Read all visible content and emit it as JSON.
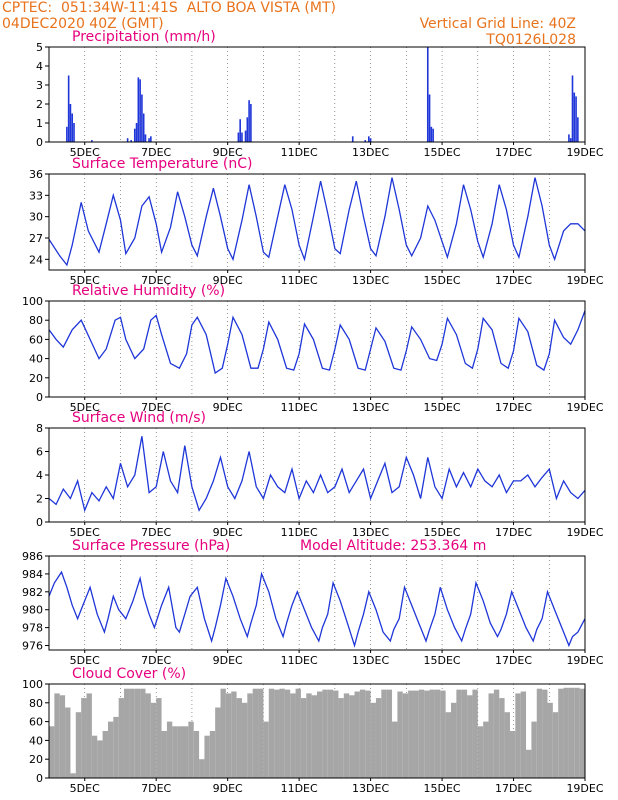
{
  "header": {
    "left_line1": "CPTEC:  051:34W-11:41S  ALTO BOA VISTA (MT)",
    "left_line2": "04DEC2020 40Z (GMT)",
    "right_line1": "Vertical Grid Line: 40Z",
    "right_line2": "TQ0126L028"
  },
  "colors": {
    "series": "#1f36d8",
    "title": "#e6007e",
    "header": "#e8731d",
    "cloud": "#a6a6a6",
    "grid": "#555555"
  },
  "chart_data": [
    {
      "type": "bar",
      "title": "Precipitation (mm/h)",
      "xlim": [
        4.0,
        19.0
      ],
      "ylim": [
        0,
        5
      ],
      "yticks": [
        0,
        1,
        2,
        3,
        4,
        5
      ],
      "xticks": [
        "5DEC",
        "7DEC",
        "9DEC",
        "11DEC",
        "13DEC",
        "15DEC",
        "17DEC",
        "19DEC"
      ],
      "bar_width_days": 0.045,
      "x": [
        4.5,
        4.55,
        4.6,
        4.65,
        4.7,
        5.2,
        6.2,
        6.3,
        6.4,
        6.45,
        6.5,
        6.55,
        6.6,
        6.65,
        6.7,
        6.8,
        6.85,
        9.3,
        9.35,
        9.4,
        9.5,
        9.55,
        9.6,
        9.65,
        12.5,
        12.85,
        12.95,
        13.0,
        14.6,
        14.65,
        14.7,
        14.75,
        18.55,
        18.6,
        18.65,
        18.7,
        18.75,
        18.8
      ],
      "values": [
        0.8,
        3.5,
        2.0,
        1.5,
        1.0,
        0.1,
        0.2,
        0.1,
        0.7,
        1.0,
        3.4,
        3.3,
        2.5,
        1.5,
        0.4,
        0.2,
        0.3,
        0.5,
        1.2,
        0.5,
        0.6,
        1.3,
        2.2,
        2.0,
        0.3,
        0.1,
        0.3,
        0.2,
        5.0,
        2.5,
        0.8,
        0.7,
        0.4,
        0.2,
        3.5,
        2.6,
        2.4,
        1.3
      ]
    },
    {
      "type": "line",
      "title": "Surface Temperature (nC)",
      "xlim": [
        4.0,
        19.0
      ],
      "ylim": [
        22.5,
        36
      ],
      "yticks": [
        24,
        27,
        30,
        33,
        36
      ],
      "xticks": [
        "5DEC",
        "7DEC",
        "9DEC",
        "11DEC",
        "13DEC",
        "15DEC",
        "17DEC",
        "19DEC"
      ],
      "x": [
        4.0,
        4.3,
        4.5,
        4.65,
        4.9,
        5.1,
        5.4,
        5.6,
        5.8,
        6.0,
        6.15,
        6.4,
        6.6,
        6.8,
        7.0,
        7.15,
        7.4,
        7.6,
        7.8,
        8.0,
        8.15,
        8.4,
        8.6,
        8.8,
        9.0,
        9.15,
        9.4,
        9.6,
        9.8,
        10.0,
        10.15,
        10.4,
        10.6,
        10.8,
        11.0,
        11.15,
        11.4,
        11.6,
        11.8,
        12.0,
        12.15,
        12.4,
        12.6,
        12.8,
        13.0,
        13.15,
        13.4,
        13.6,
        13.8,
        14.0,
        14.15,
        14.4,
        14.6,
        14.8,
        15.0,
        15.15,
        15.4,
        15.6,
        15.8,
        16.0,
        16.15,
        16.4,
        16.6,
        16.8,
        17.0,
        17.15,
        17.4,
        17.6,
        17.8,
        18.0,
        18.15,
        18.4,
        18.6,
        18.8,
        19.0
      ],
      "values": [
        26.8,
        24.5,
        23.2,
        26.0,
        32.0,
        28.0,
        25.0,
        29.0,
        33.0,
        29.5,
        24.8,
        27.0,
        31.5,
        32.8,
        29.0,
        25.0,
        28.5,
        33.5,
        30.0,
        26.0,
        24.5,
        30.0,
        34.0,
        30.0,
        25.5,
        24.0,
        29.5,
        34.5,
        30.0,
        25.0,
        24.3,
        30.0,
        34.5,
        31.0,
        26.0,
        24.0,
        30.0,
        35.0,
        30.5,
        25.5,
        24.8,
        31.0,
        35.0,
        30.0,
        25.5,
        24.5,
        30.0,
        35.5,
        31.0,
        26.0,
        24.5,
        27.0,
        31.5,
        29.5,
        26.5,
        24.3,
        29.0,
        34.5,
        31.0,
        26.5,
        24.3,
        29.0,
        34.5,
        31.0,
        26.0,
        24.3,
        30.0,
        35.5,
        31.5,
        26.0,
        24.0,
        28.0,
        29.0,
        29.0,
        28.0
      ]
    },
    {
      "type": "line",
      "title": "Relative Humidity (%)",
      "xlim": [
        4.0,
        19.0
      ],
      "ylim": [
        0,
        100
      ],
      "yticks": [
        0,
        20,
        40,
        60,
        80,
        100
      ],
      "xticks": [
        "5DEC",
        "7DEC",
        "9DEC",
        "11DEC",
        "13DEC",
        "15DEC",
        "17DEC",
        "19DEC"
      ],
      "x": [
        4.0,
        4.2,
        4.4,
        4.65,
        4.9,
        5.15,
        5.4,
        5.6,
        5.85,
        6.0,
        6.15,
        6.4,
        6.65,
        6.85,
        7.0,
        7.15,
        7.4,
        7.65,
        7.85,
        8.0,
        8.15,
        8.4,
        8.65,
        8.85,
        9.0,
        9.15,
        9.4,
        9.65,
        9.85,
        10.0,
        10.15,
        10.4,
        10.65,
        10.85,
        11.0,
        11.15,
        11.4,
        11.65,
        11.85,
        12.0,
        12.15,
        12.4,
        12.65,
        12.85,
        13.0,
        13.15,
        13.4,
        13.65,
        13.85,
        14.0,
        14.15,
        14.4,
        14.65,
        14.85,
        15.0,
        15.15,
        15.4,
        15.65,
        15.85,
        16.0,
        16.15,
        16.4,
        16.65,
        16.85,
        17.0,
        17.15,
        17.4,
        17.65,
        17.85,
        18.0,
        18.15,
        18.4,
        18.6,
        18.8,
        19.0
      ],
      "values": [
        70.0,
        60.0,
        52.0,
        70.0,
        80.0,
        60.0,
        40.0,
        50.0,
        80.0,
        83.0,
        60.0,
        40.0,
        50.0,
        80.0,
        85.0,
        65.0,
        35.0,
        30.0,
        45.0,
        75.0,
        83.0,
        65.0,
        25.0,
        30.0,
        55.0,
        83.0,
        65.0,
        30.0,
        30.0,
        50.0,
        78.0,
        60.0,
        30.0,
        28.0,
        45.0,
        76.0,
        60.0,
        30.0,
        28.0,
        50.0,
        75.0,
        60.0,
        30.0,
        28.0,
        50.0,
        72.0,
        58.0,
        30.0,
        28.0,
        48.0,
        73.0,
        60.0,
        40.0,
        38.0,
        55.0,
        82.0,
        65.0,
        35.0,
        30.0,
        50.0,
        82.0,
        70.0,
        35.0,
        30.0,
        48.0,
        82.0,
        68.0,
        33.0,
        28.0,
        45.0,
        80.0,
        62.0,
        55.0,
        70.0,
        90.0
      ]
    },
    {
      "type": "line",
      "title": "Surface Wind (m/s)",
      "xlim": [
        4.0,
        19.0
      ],
      "ylim": [
        0,
        8
      ],
      "yticks": [
        0,
        2,
        4,
        6,
        8
      ],
      "xticks": [
        "5DEC",
        "7DEC",
        "9DEC",
        "11DEC",
        "13DEC",
        "15DEC",
        "17DEC",
        "19DEC"
      ],
      "x": [
        4.0,
        4.2,
        4.4,
        4.6,
        4.8,
        5.0,
        5.2,
        5.4,
        5.6,
        5.8,
        6.0,
        6.2,
        6.4,
        6.6,
        6.8,
        7.0,
        7.2,
        7.4,
        7.6,
        7.8,
        8.0,
        8.2,
        8.4,
        8.6,
        8.8,
        9.0,
        9.2,
        9.4,
        9.6,
        9.8,
        10.0,
        10.2,
        10.4,
        10.6,
        10.8,
        11.0,
        11.2,
        11.4,
        11.6,
        11.8,
        12.0,
        12.2,
        12.4,
        12.6,
        12.8,
        13.0,
        13.2,
        13.4,
        13.6,
        13.8,
        14.0,
        14.2,
        14.4,
        14.6,
        14.8,
        15.0,
        15.2,
        15.4,
        15.6,
        15.8,
        16.0,
        16.2,
        16.4,
        16.6,
        16.8,
        17.0,
        17.2,
        17.4,
        17.6,
        17.8,
        18.0,
        18.2,
        18.4,
        18.6,
        18.8,
        19.0
      ],
      "values": [
        2.0,
        1.5,
        2.8,
        2.0,
        3.5,
        1.0,
        2.5,
        1.8,
        3.0,
        2.0,
        5.0,
        3.0,
        4.0,
        7.3,
        2.5,
        3.0,
        6.0,
        3.5,
        2.5,
        6.5,
        3.0,
        1.0,
        2.0,
        3.5,
        5.5,
        3.0,
        2.0,
        3.5,
        6.0,
        3.0,
        2.0,
        4.0,
        3.0,
        2.5,
        4.5,
        2.0,
        3.5,
        2.5,
        4.0,
        2.5,
        3.0,
        4.5,
        2.5,
        3.5,
        4.5,
        2.0,
        3.5,
        5.0,
        2.5,
        3.0,
        5.5,
        4.0,
        2.0,
        5.5,
        3.0,
        2.0,
        4.5,
        3.0,
        4.2,
        3.0,
        4.5,
        3.5,
        3.0,
        4.0,
        2.5,
        3.5,
        3.5,
        4.0,
        3.0,
        3.8,
        4.5,
        2.0,
        3.5,
        2.5,
        2.0,
        2.7
      ]
    },
    {
      "type": "line",
      "title": "Surface Pressure (hPa)",
      "annotation": "Model Altitude: 253.364 m",
      "xlim": [
        4.0,
        19.0
      ],
      "ylim": [
        975.5,
        986
      ],
      "yticks": [
        976,
        978,
        980,
        982,
        984,
        986
      ],
      "xticks": [
        "5DEC",
        "7DEC",
        "9DEC",
        "11DEC",
        "13DEC",
        "15DEC",
        "17DEC",
        "19DEC"
      ],
      "x": [
        4.0,
        4.15,
        4.35,
        4.5,
        4.65,
        4.8,
        4.95,
        5.15,
        5.35,
        5.55,
        5.65,
        5.8,
        5.95,
        6.15,
        6.35,
        6.55,
        6.65,
        6.8,
        6.95,
        7.15,
        7.35,
        7.55,
        7.65,
        7.8,
        7.95,
        8.15,
        8.35,
        8.55,
        8.65,
        8.8,
        8.95,
        9.15,
        9.35,
        9.55,
        9.65,
        9.8,
        9.95,
        10.15,
        10.35,
        10.55,
        10.65,
        10.8,
        10.95,
        11.15,
        11.35,
        11.55,
        11.65,
        11.8,
        11.95,
        12.15,
        12.35,
        12.55,
        12.65,
        12.8,
        12.95,
        13.15,
        13.35,
        13.55,
        13.65,
        13.8,
        13.95,
        14.15,
        14.35,
        14.55,
        14.65,
        14.8,
        14.95,
        15.15,
        15.35,
        15.55,
        15.65,
        15.8,
        15.95,
        16.15,
        16.35,
        16.55,
        16.65,
        16.8,
        16.95,
        17.15,
        17.35,
        17.55,
        17.65,
        17.8,
        17.95,
        18.15,
        18.35,
        18.55,
        18.65,
        18.8,
        19.0
      ],
      "values": [
        981.5,
        983.0,
        984.2,
        982.5,
        980.5,
        979.0,
        980.5,
        982.5,
        979.5,
        977.5,
        979.0,
        981.5,
        980.0,
        979.0,
        981.0,
        983.5,
        981.5,
        979.5,
        978.0,
        980.5,
        982.5,
        978.0,
        977.5,
        979.5,
        981.5,
        982.5,
        979.0,
        976.5,
        978.0,
        980.5,
        983.5,
        981.5,
        979.0,
        977.0,
        978.5,
        980.5,
        984.0,
        982.0,
        979.0,
        977.0,
        978.5,
        980.5,
        982.0,
        980.0,
        978.0,
        976.5,
        978.0,
        979.5,
        983.0,
        981.0,
        978.5,
        976.0,
        977.5,
        979.5,
        982.0,
        980.0,
        977.5,
        976.5,
        977.8,
        979.0,
        982.5,
        980.5,
        978.5,
        976.5,
        977.8,
        979.5,
        982.5,
        980.0,
        978.0,
        976.5,
        977.8,
        979.5,
        983.0,
        981.0,
        978.5,
        977.0,
        977.8,
        979.5,
        982.0,
        980.0,
        978.0,
        976.5,
        977.8,
        979.0,
        982.0,
        980.0,
        978.0,
        976.0,
        977.0,
        977.5,
        979.0
      ]
    },
    {
      "type": "bar",
      "title": "Cloud Cover (%)",
      "xlim": [
        4.0,
        19.0
      ],
      "ylim": [
        0,
        100
      ],
      "yticks": [
        0,
        20,
        40,
        60,
        80,
        100
      ],
      "xticks": [
        "5DEC",
        "7DEC",
        "9DEC",
        "11DEC",
        "13DEC",
        "15DEC",
        "17DEC",
        "19DEC"
      ],
      "x": [
        4.0,
        4.15,
        4.3,
        4.45,
        4.6,
        4.75,
        4.9,
        5.05,
        5.2,
        5.35,
        5.5,
        5.65,
        5.8,
        5.95,
        6.1,
        6.25,
        6.4,
        6.55,
        6.7,
        6.85,
        7.0,
        7.15,
        7.3,
        7.45,
        7.6,
        7.75,
        7.9,
        8.05,
        8.2,
        8.35,
        8.5,
        8.65,
        8.8,
        8.95,
        9.1,
        9.25,
        9.4,
        9.55,
        9.7,
        9.85,
        10.0,
        10.15,
        10.3,
        10.45,
        10.6,
        10.75,
        10.9,
        11.05,
        11.2,
        11.35,
        11.5,
        11.65,
        11.8,
        11.95,
        12.1,
        12.25,
        12.4,
        12.55,
        12.7,
        12.85,
        13.0,
        13.15,
        13.3,
        13.45,
        13.6,
        13.75,
        13.9,
        14.05,
        14.2,
        14.35,
        14.5,
        14.65,
        14.8,
        14.95,
        15.1,
        15.25,
        15.4,
        15.55,
        15.7,
        15.85,
        16.0,
        16.15,
        16.3,
        16.45,
        16.6,
        16.75,
        16.9,
        17.05,
        17.2,
        17.35,
        17.5,
        17.65,
        17.8,
        17.95,
        18.1,
        18.25,
        18.4,
        18.55,
        18.7,
        18.85
      ],
      "values": [
        55,
        90,
        88,
        75,
        5,
        70,
        85,
        90,
        45,
        40,
        50,
        60,
        65,
        85,
        95,
        95,
        95,
        95,
        90,
        80,
        85,
        50,
        60,
        55,
        55,
        55,
        60,
        50,
        20,
        45,
        50,
        75,
        95,
        90,
        92,
        85,
        80,
        90,
        95,
        95,
        60,
        95,
        94,
        95,
        94,
        90,
        95,
        85,
        90,
        88,
        92,
        94,
        94,
        93,
        85,
        90,
        88,
        92,
        94,
        93,
        80,
        85,
        94,
        94,
        60,
        92,
        90,
        93,
        93,
        94,
        93,
        94,
        94,
        93,
        70,
        80,
        94,
        94,
        88,
        94,
        55,
        60,
        90,
        94,
        85,
        70,
        50,
        90,
        92,
        30,
        60,
        95,
        94,
        80,
        70,
        95,
        96,
        96,
        96,
        95
      ]
    }
  ]
}
